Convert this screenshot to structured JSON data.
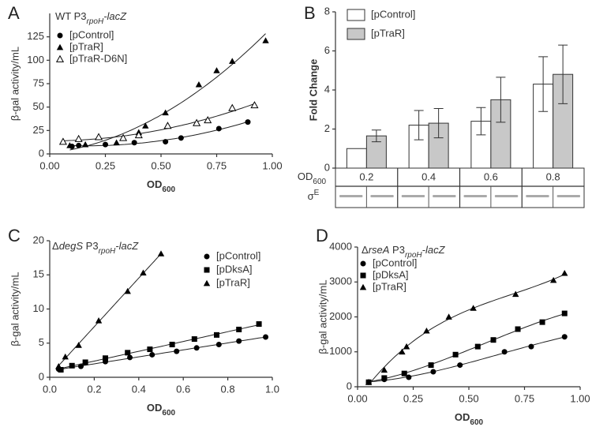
{
  "chart_data": [
    {
      "type": "scatter",
      "panel": "A",
      "title_parts": [
        {
          "text": "WT P3"
        },
        {
          "text": "rpoH",
          "italic": true,
          "sub": true
        },
        {
          "text": "-lacZ",
          "italic": true
        }
      ],
      "x_label_parts": [
        {
          "text": "OD"
        },
        {
          "text": "600",
          "sub": true
        }
      ],
      "y_label": "β-gal activity/mL",
      "xlim": [
        0,
        1
      ],
      "xticks": [
        {
          "value": 0,
          "label": "0.00"
        },
        0.25,
        {
          "value": 0.5,
          "label": "0.50"
        },
        0.75,
        {
          "value": 1,
          "label": "1.00"
        }
      ],
      "ylim": [
        0,
        150
      ],
      "yticks": [
        0,
        25,
        50,
        75,
        100,
        125
      ],
      "series": [
        {
          "name": "[pControl]",
          "marker": "circle",
          "color": "#000000",
          "x": [
            0.1,
            0.13,
            0.25,
            0.38,
            0.52,
            0.59,
            0.76,
            0.89
          ],
          "values": [
            8,
            9,
            10,
            12,
            13,
            17,
            27,
            34
          ]
        },
        {
          "name": "[pTraR]",
          "marker": "triangle",
          "color": "#000000",
          "x": [
            0.09,
            0.16,
            0.3,
            0.4,
            0.43,
            0.52,
            0.67,
            0.75,
            0.82,
            0.97
          ],
          "values": [
            9,
            10,
            12,
            23,
            30,
            44,
            74,
            89,
            99,
            121
          ]
        },
        {
          "name": "[pTraR-D6N]",
          "marker": "triangle-open",
          "color": "#000000",
          "x": [
            0.06,
            0.13,
            0.22,
            0.33,
            0.4,
            0.53,
            0.66,
            0.71,
            0.82,
            0.92
          ],
          "values": [
            13,
            16,
            18,
            17,
            20,
            30,
            33,
            36,
            49,
            52
          ]
        }
      ]
    },
    {
      "type": "bar",
      "panel": "B",
      "y_label": "Fold  Change",
      "categories": [
        "0.2",
        "0.4",
        "0.6",
        "0.8"
      ],
      "x_label_parts": [
        {
          "text": "OD"
        },
        {
          "text": "600",
          "sub": true
        }
      ],
      "band_label_parts": [
        {
          "text": "σ"
        },
        {
          "text": "E",
          "sup": true
        }
      ],
      "ylim": [
        0,
        8
      ],
      "yticks": [
        0,
        2,
        4,
        6,
        8
      ],
      "series": [
        {
          "name": "[pControl]",
          "color": "#ffffff",
          "values": [
            1,
            2.2,
            2.4,
            4.3
          ],
          "errors": [
            null,
            0.75,
            0.7,
            1.4
          ]
        },
        {
          "name": "[pTraR]",
          "color": "#c8c8c8",
          "values": [
            1.65,
            2.3,
            3.5,
            4.8
          ],
          "errors": [
            0.3,
            0.75,
            1.15,
            1.5
          ]
        }
      ]
    },
    {
      "type": "scatter",
      "panel": "C",
      "title_parts": [
        {
          "text": "Δ"
        },
        {
          "text": "degS",
          "italic": true
        },
        {
          "text": " P3"
        },
        {
          "text": "rpoH",
          "italic": true,
          "sub": true
        },
        {
          "text": "-lacZ",
          "italic": true
        }
      ],
      "x_label_parts": [
        {
          "text": "OD"
        },
        {
          "text": "600",
          "sub": true
        }
      ],
      "y_label": "β-gal activity/mL",
      "xlim": [
        0,
        1
      ],
      "xticks": [
        {
          "value": 0,
          "label": "0.0"
        },
        0.2,
        0.4,
        0.6,
        0.8,
        {
          "value": 1,
          "label": "1.0"
        }
      ],
      "ylim": [
        0,
        20
      ],
      "yticks": [
        0,
        5,
        10,
        15,
        20
      ],
      "series": [
        {
          "name": "[pControl]",
          "marker": "circle",
          "color": "#000000",
          "x": [
            0.04,
            0.05,
            0.14,
            0.25,
            0.36,
            0.46,
            0.57,
            0.66,
            0.76,
            0.85,
            0.97
          ],
          "values": [
            1.2,
            1.1,
            1.6,
            2.3,
            2.9,
            3.3,
            3.8,
            4.3,
            4.8,
            5.3,
            5.9
          ]
        },
        {
          "name": "[pDksA]",
          "marker": "square",
          "color": "#000000",
          "x": [
            0.05,
            0.1,
            0.16,
            0.25,
            0.35,
            0.45,
            0.55,
            0.65,
            0.75,
            0.85,
            0.94
          ],
          "values": [
            1.1,
            1.7,
            2.2,
            2.8,
            3.6,
            4.1,
            4.8,
            5.6,
            6.2,
            7.0,
            7.8
          ]
        },
        {
          "name": "[pTraR]",
          "marker": "triangle",
          "color": "#000000",
          "x": [
            0.04,
            0.07,
            0.13,
            0.22,
            0.35,
            0.42,
            0.5
          ],
          "values": [
            1.6,
            3.0,
            4.7,
            8.3,
            12.6,
            15.3,
            18.1
          ]
        }
      ]
    },
    {
      "type": "scatter",
      "panel": "D",
      "title_parts": [
        {
          "text": "Δ"
        },
        {
          "text": "rseA",
          "italic": true
        },
        {
          "text": " P3"
        },
        {
          "text": "rpoH",
          "italic": true,
          "sub": true
        },
        {
          "text": "-lacZ",
          "italic": true
        }
      ],
      "x_label_parts": [
        {
          "text": "OD"
        },
        {
          "text": "600",
          "sub": true
        }
      ],
      "y_label": "β-gal activity/mL",
      "xlim": [
        0,
        1
      ],
      "xticks": [
        {
          "value": 0,
          "label": "0.00"
        },
        0.25,
        {
          "value": 0.5,
          "label": "0.50"
        },
        0.75,
        {
          "value": 1,
          "label": "1.00"
        }
      ],
      "ylim": [
        0,
        4000
      ],
      "yticks": [
        0,
        1000,
        2000,
        3000,
        4000
      ],
      "series": [
        {
          "name": "[pControl]",
          "marker": "circle",
          "color": "#000000",
          "x": [
            0.05,
            0.12,
            0.23,
            0.34,
            0.46,
            0.66,
            0.78,
            0.93
          ],
          "values": [
            130,
            210,
            270,
            430,
            620,
            1000,
            1150,
            1430
          ]
        },
        {
          "name": "[pDksA]",
          "marker": "square",
          "color": "#000000",
          "x": [
            0.05,
            0.12,
            0.21,
            0.33,
            0.44,
            0.54,
            0.61,
            0.72,
            0.83,
            0.93
          ],
          "values": [
            130,
            250,
            380,
            620,
            920,
            1150,
            1340,
            1650,
            1850,
            2100
          ]
        },
        {
          "name": "[pTraR]",
          "marker": "triangle",
          "color": "#000000",
          "x": [
            0.05,
            0.12,
            0.2,
            0.22,
            0.31,
            0.41,
            0.52,
            0.71,
            0.88,
            0.93
          ],
          "values": [
            130,
            480,
            1000,
            1150,
            1600,
            2000,
            2250,
            2650,
            3050,
            3250
          ]
        }
      ]
    }
  ]
}
